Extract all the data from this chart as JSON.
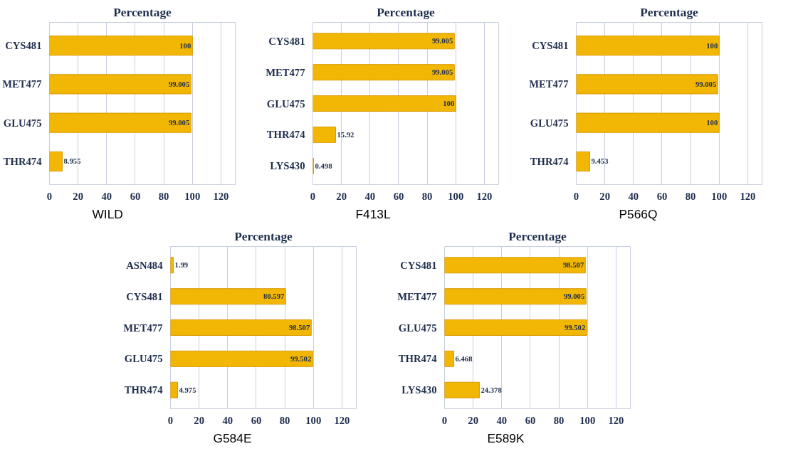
{
  "chart_data": [
    {
      "type": "bar",
      "orientation": "horizontal",
      "title": "Percentage",
      "categories": [
        "CYS481",
        "MET477",
        "GLU475",
        "THR474"
      ],
      "values": [
        100,
        99.005,
        99.005,
        8.955
      ],
      "color": "#f2b705",
      "xlim": [
        0,
        130
      ],
      "xticks": [
        0,
        20,
        40,
        60,
        80,
        100,
        120
      ],
      "grid": "x",
      "data_labels": true,
      "annotations": [
        "WILD"
      ]
    },
    {
      "type": "bar",
      "orientation": "horizontal",
      "title": "Percentage",
      "categories": [
        "CYS481",
        "MET477",
        "GLU475",
        "THR474",
        "LYS430"
      ],
      "values": [
        99.005,
        99.005,
        100,
        15.92,
        0.498
      ],
      "color": "#f2b705",
      "xlim": [
        0,
        130
      ],
      "xticks": [
        0,
        20,
        40,
        60,
        80,
        100,
        120
      ],
      "grid": "x",
      "data_labels": true,
      "annotations": [
        "F413L"
      ]
    },
    {
      "type": "bar",
      "orientation": "horizontal",
      "title": "Percentage",
      "categories": [
        "CYS481",
        "MET477",
        "GLU475",
        "THR474"
      ],
      "values": [
        100,
        99.005,
        100,
        9.453
      ],
      "color": "#f2b705",
      "xlim": [
        0,
        130
      ],
      "xticks": [
        0,
        20,
        40,
        60,
        80,
        100,
        120
      ],
      "grid": "x",
      "data_labels": true,
      "annotations": [
        "P566Q"
      ]
    },
    {
      "type": "bar",
      "orientation": "horizontal",
      "title": "Percentage",
      "categories": [
        "ASN484",
        "CYS481",
        "MET477",
        "GLU475",
        "THR474"
      ],
      "values": [
        1.99,
        80.597,
        98.507,
        99.502,
        4.975
      ],
      "color": "#f2b705",
      "xlim": [
        0,
        130
      ],
      "xticks": [
        0,
        20,
        40,
        60,
        80,
        100,
        120
      ],
      "grid": "x",
      "data_labels": true,
      "annotations": [
        "G584E"
      ]
    },
    {
      "type": "bar",
      "orientation": "horizontal",
      "title": "Percentage",
      "categories": [
        "CYS481",
        "MET477",
        "GLU475",
        "THR474",
        "LYS430"
      ],
      "values": [
        98.507,
        99.005,
        99.502,
        6.468,
        24.378
      ],
      "color": "#f2b705",
      "xlim": [
        0,
        130
      ],
      "xticks": [
        0,
        20,
        40,
        60,
        80,
        100,
        120
      ],
      "grid": "x",
      "data_labels": true,
      "annotations": [
        "E589K"
      ]
    }
  ]
}
